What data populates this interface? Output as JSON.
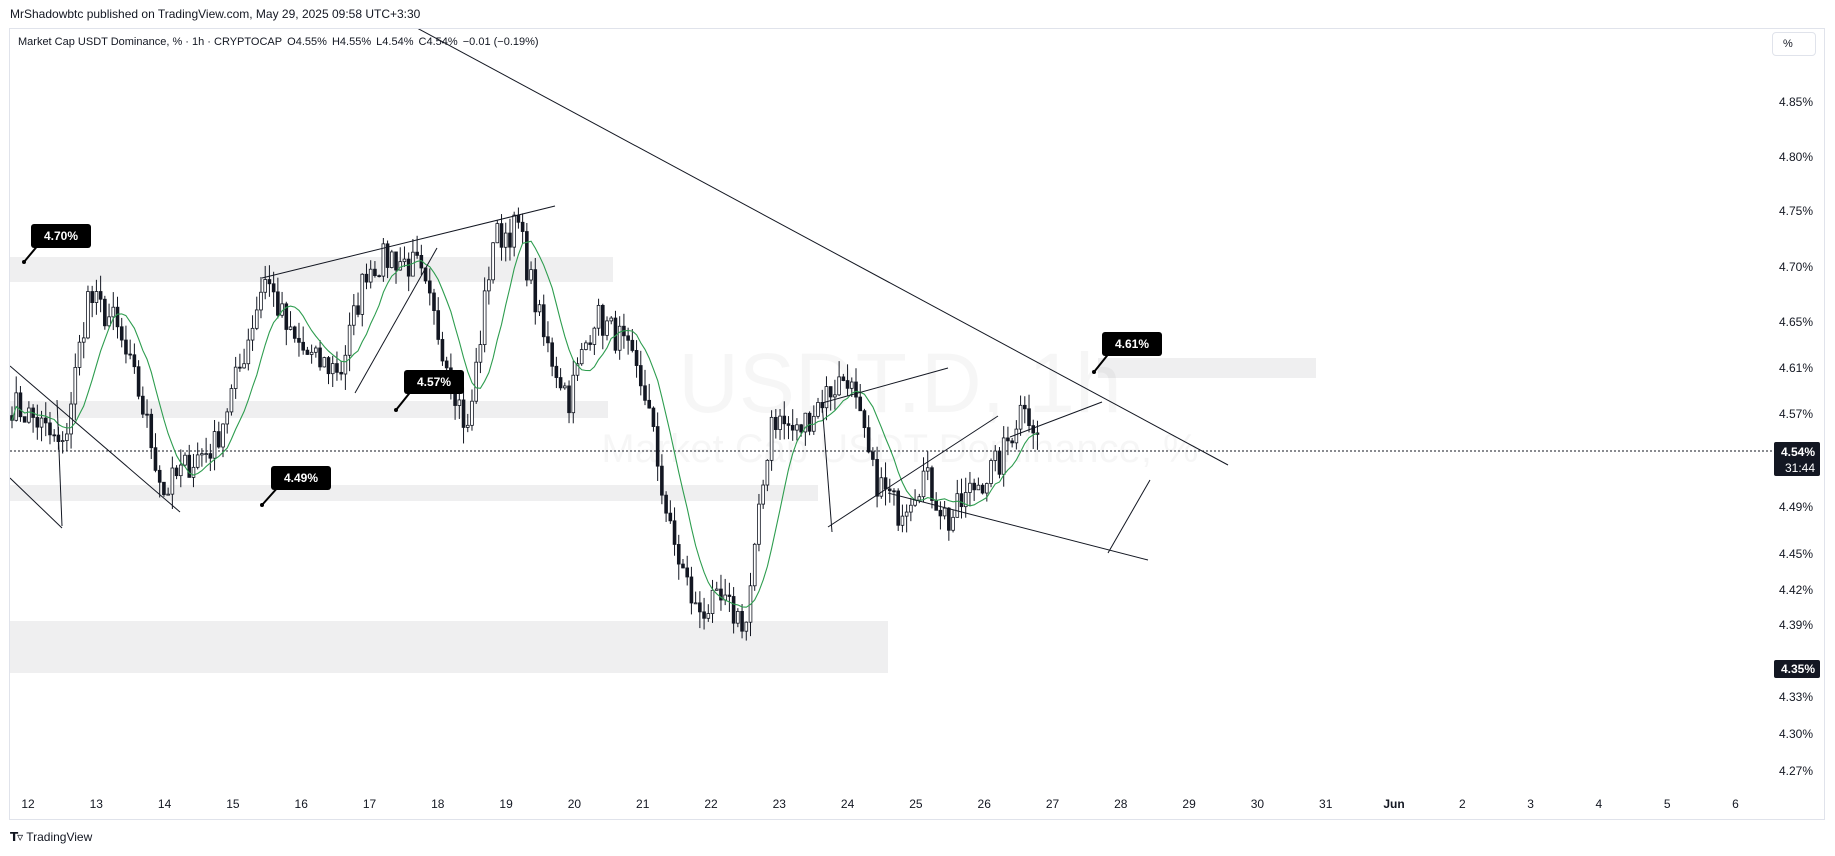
{
  "header": {
    "published": "MrShadowbtc published on TradingView.com, May 29, 2025 09:58 UTC+3:30",
    "symbol": "Market Cap USDT Dominance, % · 1h · CRYPTOCAP",
    "open": "O4.55%",
    "high": "H4.55%",
    "low": "L4.54%",
    "close": "C4.54%",
    "change": "−0.01 (−0.19%)",
    "scale_button": "%"
  },
  "watermark": {
    "line1": "USDT.D, 1h",
    "line2": "Market Cap USDT Dominance, %"
  },
  "footer": {
    "logo_text": "TradingView"
  },
  "colors": {
    "candle": "#131722",
    "ma_line": "#2e9d4f",
    "zone": "#efeff0",
    "trendline": "#131722",
    "label_bg": "#000000",
    "price_tag_bg": "#131722"
  },
  "chart_data": {
    "type": "candlestick",
    "y_ticks": [
      "4.85%",
      "4.80%",
      "4.75%",
      "4.70%",
      "4.65%",
      "4.61%",
      "4.57%",
      "4.49%",
      "4.45%",
      "4.42%",
      "4.39%",
      "4.33%",
      "4.30%",
      "4.27%"
    ],
    "x_ticks": [
      "12",
      "13",
      "14",
      "15",
      "16",
      "17",
      "18",
      "19",
      "20",
      "21",
      "22",
      "23",
      "24",
      "25",
      "26",
      "27",
      "28",
      "29",
      "30",
      "31",
      "Jun",
      "2",
      "3",
      "4",
      "5",
      "6"
    ],
    "current_price": "4.54%",
    "countdown": "31:44",
    "marked_level": "4.35%",
    "level_labels": [
      "4.70%",
      "4.57%",
      "4.49%",
      "4.61%"
    ],
    "close_path": [
      [
        0,
        4.58
      ],
      [
        6,
        4.565
      ],
      [
        12,
        4.54
      ],
      [
        18,
        4.67
      ],
      [
        24,
        4.65
      ],
      [
        30,
        4.59
      ],
      [
        36,
        4.505
      ],
      [
        42,
        4.53
      ],
      [
        48,
        4.545
      ],
      [
        54,
        4.61
      ],
      [
        60,
        4.69
      ],
      [
        66,
        4.635
      ],
      [
        72,
        4.615
      ],
      [
        78,
        4.61
      ],
      [
        84,
        4.695
      ],
      [
        90,
        4.705
      ],
      [
        96,
        4.695
      ],
      [
        102,
        4.63
      ],
      [
        108,
        4.555
      ],
      [
        114,
        4.72
      ],
      [
        120,
        4.73
      ],
      [
        126,
        4.635
      ],
      [
        132,
        4.585
      ],
      [
        138,
        4.655
      ],
      [
        144,
        4.635
      ],
      [
        150,
        4.59
      ],
      [
        156,
        4.47
      ],
      [
        162,
        4.405
      ],
      [
        168,
        4.41
      ],
      [
        174,
        4.395
      ],
      [
        180,
        4.57
      ],
      [
        186,
        4.555
      ],
      [
        192,
        4.585
      ],
      [
        198,
        4.605
      ],
      [
        204,
        4.52
      ],
      [
        210,
        4.49
      ],
      [
        216,
        4.52
      ],
      [
        222,
        4.48
      ],
      [
        228,
        4.51
      ],
      [
        234,
        4.53
      ],
      [
        240,
        4.585
      ],
      [
        243,
        4.55
      ]
    ]
  }
}
